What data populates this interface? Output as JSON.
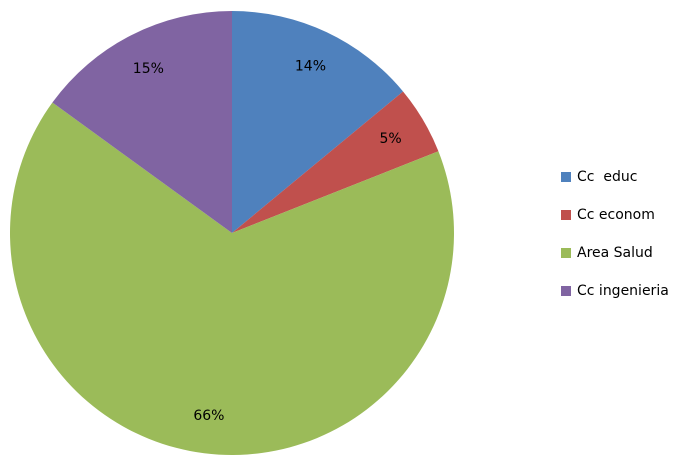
{
  "chart_data": {
    "type": "pie",
    "categories": [
      "Cc  educ",
      "Cc econom",
      "Area Salud",
      "Cc ingenieria"
    ],
    "values": [
      14,
      5,
      66,
      15
    ],
    "value_labels": [
      "14%",
      "5%",
      "66%",
      "15%"
    ],
    "colors": [
      "#4f81bd",
      "#c0504d",
      "#9bbb59",
      "#8064a2"
    ],
    "legend": "right"
  }
}
